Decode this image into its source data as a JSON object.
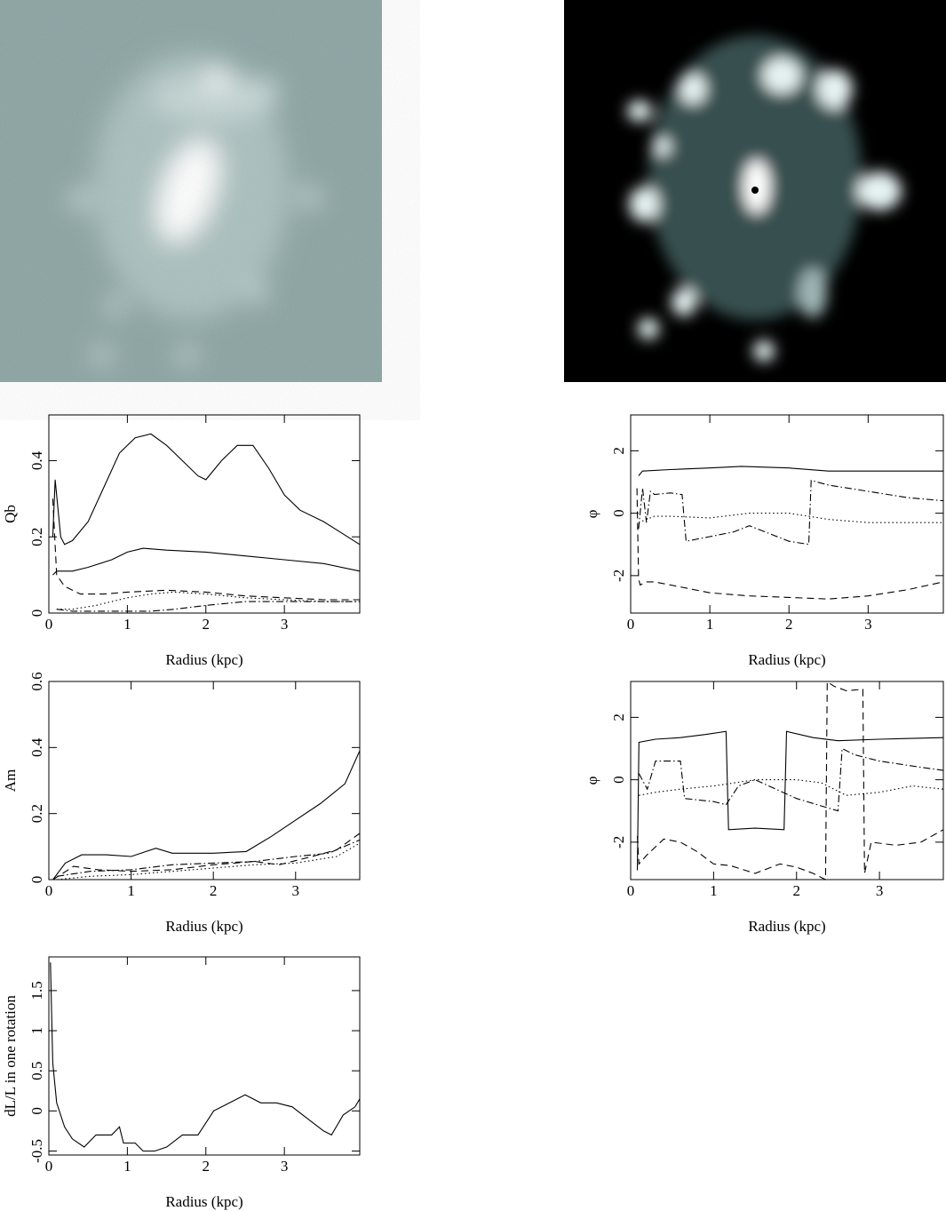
{
  "chart_data": [
    {
      "type": "line",
      "xlabel": "Radius (kpc)",
      "ylabel": "Qb",
      "xlim": [
        0,
        3.96
      ],
      "ylim": [
        0,
        0.52
      ],
      "xticks": [
        0,
        1,
        2,
        3
      ],
      "yticks": [
        0,
        0.2,
        0.4
      ],
      "series": [
        {
          "color": "#000",
          "style": "solid",
          "x": [
            0.05,
            0.08,
            0.15,
            0.2,
            0.3,
            0.5,
            0.7,
            0.9,
            1.1,
            1.3,
            1.5,
            1.7,
            1.9,
            2.0,
            2.2,
            2.4,
            2.6,
            2.8,
            3.0,
            3.2,
            3.5,
            3.96
          ],
          "values": [
            0.2,
            0.35,
            0.2,
            0.18,
            0.19,
            0.24,
            0.33,
            0.42,
            0.46,
            0.47,
            0.44,
            0.4,
            0.36,
            0.35,
            0.4,
            0.44,
            0.44,
            0.38,
            0.31,
            0.27,
            0.24,
            0.18
          ]
        },
        {
          "color": "#000",
          "style": "solid",
          "x": [
            0.05,
            0.1,
            0.3,
            0.5,
            0.8,
            1.0,
            1.2,
            1.5,
            2.0,
            2.5,
            3.0,
            3.5,
            3.96
          ],
          "values": [
            0.1,
            0.11,
            0.11,
            0.12,
            0.14,
            0.16,
            0.17,
            0.165,
            0.16,
            0.15,
            0.14,
            0.13,
            0.11
          ]
        },
        {
          "color": "#000",
          "style": "dashed",
          "x": [
            0.05,
            0.1,
            0.2,
            0.4,
            0.7,
            1.0,
            1.5,
            2.0,
            2.5,
            3.0,
            3.5,
            3.96
          ],
          "values": [
            0.3,
            0.1,
            0.07,
            0.05,
            0.05,
            0.055,
            0.06,
            0.055,
            0.045,
            0.04,
            0.035,
            0.035
          ]
        },
        {
          "color": "#000",
          "style": "dotted",
          "x": [
            0.1,
            0.3,
            0.6,
            1.0,
            1.3,
            1.6,
            2.0,
            2.5,
            3.0,
            3.5,
            3.96
          ],
          "values": [
            0.01,
            0.01,
            0.02,
            0.04,
            0.05,
            0.055,
            0.05,
            0.04,
            0.035,
            0.03,
            0.03
          ]
        },
        {
          "color": "#000",
          "style": "dashdot",
          "x": [
            0.1,
            0.3,
            0.8,
            1.3,
            1.6,
            2.0,
            2.5,
            3.0,
            3.5,
            3.96
          ],
          "values": [
            0.01,
            0.005,
            0.005,
            0.005,
            0.01,
            0.02,
            0.03,
            0.03,
            0.03,
            0.03
          ]
        }
      ]
    },
    {
      "type": "line",
      "xlabel": "Radius (kpc)",
      "ylabel": "φ",
      "xlim": [
        0,
        3.95
      ],
      "ylim": [
        -3.2,
        3.15
      ],
      "xticks": [
        0,
        1,
        2,
        3
      ],
      "yticks": [
        -2,
        0,
        2
      ],
      "series": [
        {
          "color": "#000",
          "style": "solid",
          "x": [
            0.1,
            0.15,
            0.5,
            1.0,
            1.4,
            2.0,
            2.5,
            3.0,
            3.95
          ],
          "values": [
            1.2,
            1.35,
            1.4,
            1.45,
            1.5,
            1.45,
            1.35,
            1.35,
            1.35
          ]
        },
        {
          "color": "#000",
          "style": "dashed",
          "x": [
            0.08,
            0.1,
            0.12,
            0.2,
            0.3,
            0.6,
            1.0,
            1.5,
            2.0,
            2.5,
            3.0,
            3.5,
            3.95
          ],
          "values": [
            0.8,
            -2.1,
            -2.3,
            -2.2,
            -2.2,
            -2.35,
            -2.55,
            -2.65,
            -2.7,
            -2.75,
            -2.65,
            -2.45,
            -2.2
          ]
        },
        {
          "color": "#000",
          "style": "dotted",
          "x": [
            0.1,
            0.2,
            0.3,
            0.5,
            1.0,
            1.5,
            2.0,
            2.5,
            3.0,
            3.95
          ],
          "values": [
            -0.3,
            -0.2,
            -0.1,
            -0.1,
            -0.15,
            0,
            0,
            -0.2,
            -0.3,
            -0.3
          ]
        },
        {
          "color": "#000",
          "style": "dashdot",
          "x": [
            0.1,
            0.15,
            0.2,
            0.25,
            0.3,
            0.5,
            0.65,
            0.7,
            1.0,
            1.3,
            1.5,
            1.8,
            2.0,
            2.25,
            2.28,
            2.5,
            3.0,
            3.5,
            3.95
          ],
          "values": [
            -0.5,
            0.8,
            -0.3,
            0.7,
            0.6,
            0.65,
            0.6,
            -0.9,
            -0.75,
            -0.6,
            -0.4,
            -0.7,
            -0.9,
            -1.0,
            1.05,
            0.9,
            0.7,
            0.5,
            0.4
          ]
        }
      ]
    },
    {
      "type": "line",
      "xlabel": "Radius (kpc)",
      "ylabel": "Am",
      "xlim": [
        0,
        3.78
      ],
      "ylim": [
        0,
        0.6
      ],
      "xticks": [
        0,
        1,
        2,
        3
      ],
      "yticks": [
        0,
        0.2,
        0.4,
        0.6
      ],
      "series": [
        {
          "color": "#000",
          "style": "solid",
          "x": [
            0.05,
            0.2,
            0.4,
            0.7,
            1.0,
            1.3,
            1.5,
            2.0,
            2.4,
            2.7,
            3.0,
            3.3,
            3.6,
            3.78
          ],
          "values": [
            0,
            0.05,
            0.075,
            0.075,
            0.07,
            0.095,
            0.08,
            0.08,
            0.085,
            0.13,
            0.18,
            0.23,
            0.29,
            0.39
          ]
        },
        {
          "color": "#000",
          "style": "dashed",
          "x": [
            0.05,
            0.3,
            0.6,
            1.0,
            1.5,
            2.0,
            2.5,
            2.8,
            3.2,
            3.5,
            3.78
          ],
          "values": [
            0,
            0.04,
            0.03,
            0.025,
            0.03,
            0.045,
            0.055,
            0.045,
            0.07,
            0.09,
            0.14
          ]
        },
        {
          "color": "#000",
          "style": "dashdot",
          "x": [
            0.1,
            0.5,
            1.0,
            1.5,
            2.0,
            2.5,
            3.0,
            3.4,
            3.78
          ],
          "values": [
            0.01,
            0.025,
            0.03,
            0.045,
            0.05,
            0.055,
            0.07,
            0.08,
            0.12
          ]
        },
        {
          "color": "#000",
          "style": "dotted",
          "x": [
            0.1,
            0.5,
            1.0,
            1.5,
            2.0,
            2.5,
            3.0,
            3.5,
            3.78
          ],
          "values": [
            0,
            0.01,
            0.015,
            0.025,
            0.035,
            0.045,
            0.05,
            0.07,
            0.11
          ]
        }
      ]
    },
    {
      "type": "line",
      "xlabel": "Radius (kpc)",
      "ylabel": "φ",
      "xlim": [
        0,
        3.77
      ],
      "ylim": [
        -3.2,
        3.15
      ],
      "xticks": [
        0,
        1,
        2,
        3
      ],
      "yticks": [
        -2,
        0,
        2
      ],
      "series": [
        {
          "color": "#000",
          "style": "solid",
          "x": [
            0.08,
            0.1,
            0.3,
            0.6,
            0.9,
            1.15,
            1.18,
            1.5,
            1.85,
            1.88,
            2.2,
            2.5,
            3.0,
            3.77
          ],
          "values": [
            -2.9,
            1.2,
            1.3,
            1.35,
            1.45,
            1.55,
            -1.6,
            -1.55,
            -1.6,
            1.55,
            1.35,
            1.25,
            1.3,
            1.35
          ]
        },
        {
          "color": "#000",
          "style": "dashed",
          "x": [
            0.08,
            0.1,
            0.2,
            0.4,
            0.6,
            0.8,
            1.0,
            1.2,
            1.5,
            1.8,
            2.0,
            2.2,
            2.35,
            2.37,
            2.45,
            2.6,
            2.8,
            2.82,
            2.9,
            3.2,
            3.5,
            3.77
          ],
          "values": [
            -1.8,
            -2.7,
            -2.4,
            -1.9,
            -2.0,
            -2.3,
            -2.7,
            -2.75,
            -3.0,
            -2.7,
            -2.8,
            -3.0,
            -3.2,
            3.14,
            3.0,
            2.85,
            2.9,
            -3.0,
            -2.0,
            -2.1,
            -2.0,
            -1.6
          ]
        },
        {
          "color": "#000",
          "style": "dotted",
          "x": [
            0.1,
            0.3,
            0.6,
            1.0,
            1.5,
            2.0,
            2.3,
            2.6,
            3.0,
            3.4,
            3.77
          ],
          "values": [
            -0.5,
            -0.4,
            -0.3,
            -0.2,
            0.0,
            0.0,
            -0.1,
            -0.5,
            -0.4,
            -0.2,
            -0.3
          ]
        },
        {
          "color": "#000",
          "style": "dashdot",
          "x": [
            0.1,
            0.2,
            0.3,
            0.6,
            0.65,
            1.0,
            1.15,
            1.3,
            1.5,
            2.0,
            2.5,
            2.55,
            2.7,
            3.0,
            3.5,
            3.77
          ],
          "values": [
            0.2,
            -0.3,
            0.6,
            0.6,
            -0.6,
            -0.7,
            -0.8,
            -0.2,
            0,
            -0.6,
            -1.0,
            1.0,
            0.8,
            0.6,
            0.4,
            0.3
          ]
        }
      ]
    },
    {
      "type": "line",
      "xlabel": "Radius (kpc)",
      "ylabel": "dL/L in one rotation",
      "xlim": [
        0,
        3.96
      ],
      "ylim": [
        -0.55,
        1.92
      ],
      "xticks": [
        0,
        1,
        2,
        3
      ],
      "yticks": [
        -0.5,
        0,
        0.5,
        1,
        1.5
      ],
      "series": [
        {
          "color": "#000",
          "style": "solid",
          "x": [
            0.02,
            0.05,
            0.1,
            0.2,
            0.3,
            0.45,
            0.6,
            0.8,
            0.9,
            0.95,
            1.0,
            1.1,
            1.2,
            1.35,
            1.5,
            1.7,
            1.9,
            2.1,
            2.3,
            2.5,
            2.7,
            2.9,
            3.1,
            3.3,
            3.5,
            3.6,
            3.75,
            3.9,
            3.96
          ],
          "values": [
            1.85,
            0.6,
            0.1,
            -0.2,
            -0.35,
            -0.45,
            -0.3,
            -0.3,
            -0.2,
            -0.4,
            -0.4,
            -0.4,
            -0.5,
            -0.5,
            -0.45,
            -0.3,
            -0.3,
            0.0,
            0.1,
            0.2,
            0.1,
            0.1,
            0.05,
            -0.1,
            -0.25,
            -0.3,
            -0.05,
            0.05,
            0.15
          ]
        }
      ]
    }
  ]
}
